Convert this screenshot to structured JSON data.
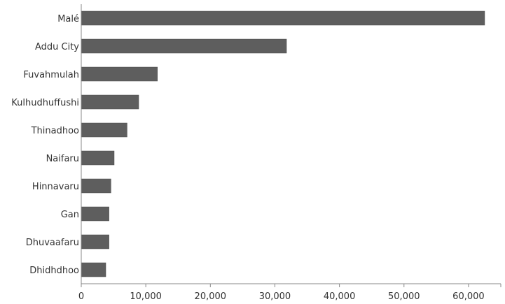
{
  "chart_data": {
    "type": "bar",
    "orientation": "horizontal",
    "categories": [
      "Malé",
      "Addu City",
      "Fuvahmulah",
      "Kulhudhuffushi",
      "Thinadhoo",
      "Naifaru",
      "Hinnavaru",
      "Gan",
      "Dhuvaafaru",
      "Dhidhdhoo"
    ],
    "values": [
      62500,
      31800,
      11800,
      8900,
      7100,
      5100,
      4600,
      4300,
      4300,
      3800
    ],
    "xlim": [
      0,
      65000
    ],
    "xticks": [
      0,
      10000,
      20000,
      30000,
      40000,
      50000,
      60000
    ],
    "xtick_labels": [
      "0",
      "10,000",
      "20,000",
      "30,000",
      "40,000",
      "50,000",
      "60,000"
    ],
    "title": "",
    "xlabel": "",
    "ylabel": "",
    "grid": false,
    "legend": false,
    "bar_color": "#5e5e5e"
  }
}
